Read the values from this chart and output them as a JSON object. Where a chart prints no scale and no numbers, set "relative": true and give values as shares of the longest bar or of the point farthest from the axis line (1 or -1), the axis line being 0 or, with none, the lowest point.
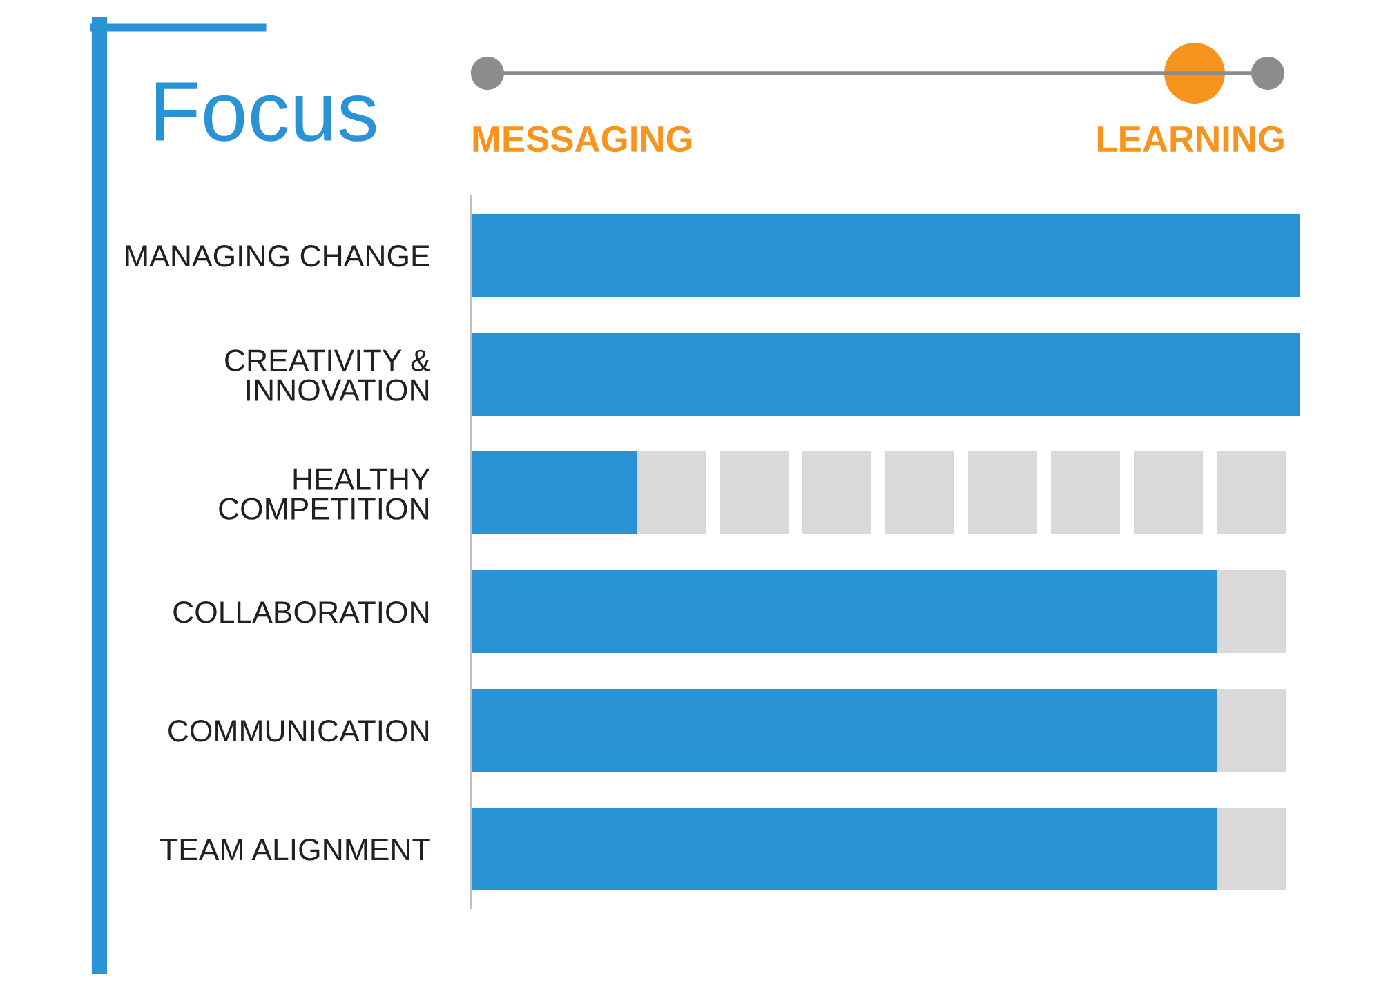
{
  "chart_data": {
    "type": "bar",
    "orientation": "horizontal",
    "relative": true,
    "tick_labels": "y",
    "title": "Focus",
    "categories": [
      "MANAGING CHANGE",
      "CREATIVITY &\nINNOVATION",
      "HEALTHY\nCOMPETITION",
      "COLLABORATION",
      "COMMUNICATION",
      "TEAM ALIGNMENT"
    ],
    "values": [
      1,
      1,
      0.2,
      0.9,
      0.9,
      0.9
    ],
    "color": "#2a93d5",
    "annotations": [
      "MESSAGING",
      "LEARNING"
    ]
  }
}
